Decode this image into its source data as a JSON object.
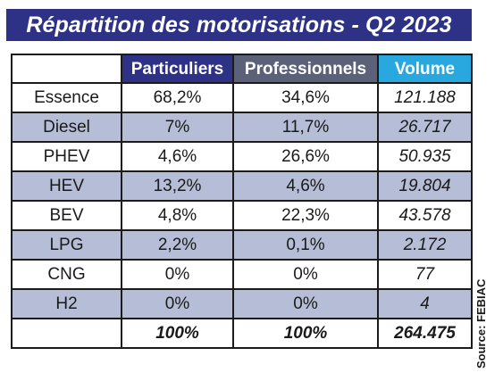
{
  "title": "Répartition des motorisations - Q2 2023",
  "source": "Source: FEBIAC",
  "colors": {
    "title_bg": "#2d3286",
    "header_particuliers": "#2d3286",
    "header_professionnels": "#5a6178",
    "header_volume": "#29a8df",
    "row_alt": "#b5bdd7"
  },
  "chart_data": {
    "type": "table",
    "title": "Répartition des motorisations - Q2 2023",
    "columns": [
      "",
      "Particuliers",
      "Professionnels",
      "Volume"
    ],
    "rows": [
      {
        "label": "Essence",
        "particuliers": "68,2%",
        "professionnels": "34,6%",
        "volume": "121.188"
      },
      {
        "label": "Diesel",
        "particuliers": "7%",
        "professionnels": "11,7%",
        "volume": "26.717"
      },
      {
        "label": "PHEV",
        "particuliers": "4,6%",
        "professionnels": "26,6%",
        "volume": "50.935"
      },
      {
        "label": "HEV",
        "particuliers": "13,2%",
        "professionnels": "4,6%",
        "volume": "19.804"
      },
      {
        "label": "BEV",
        "particuliers": "4,8%",
        "professionnels": "22,3%",
        "volume": "43.578"
      },
      {
        "label": "LPG",
        "particuliers": "2,2%",
        "professionnels": "0,1%",
        "volume": "2.172"
      },
      {
        "label": "CNG",
        "particuliers": "0%",
        "professionnels": "0%",
        "volume": "77"
      },
      {
        "label": "H2",
        "particuliers": "0%",
        "professionnels": "0%",
        "volume": "4"
      }
    ],
    "total": {
      "label": "",
      "particuliers": "100%",
      "professionnels": "100%",
      "volume": "264.475"
    }
  }
}
